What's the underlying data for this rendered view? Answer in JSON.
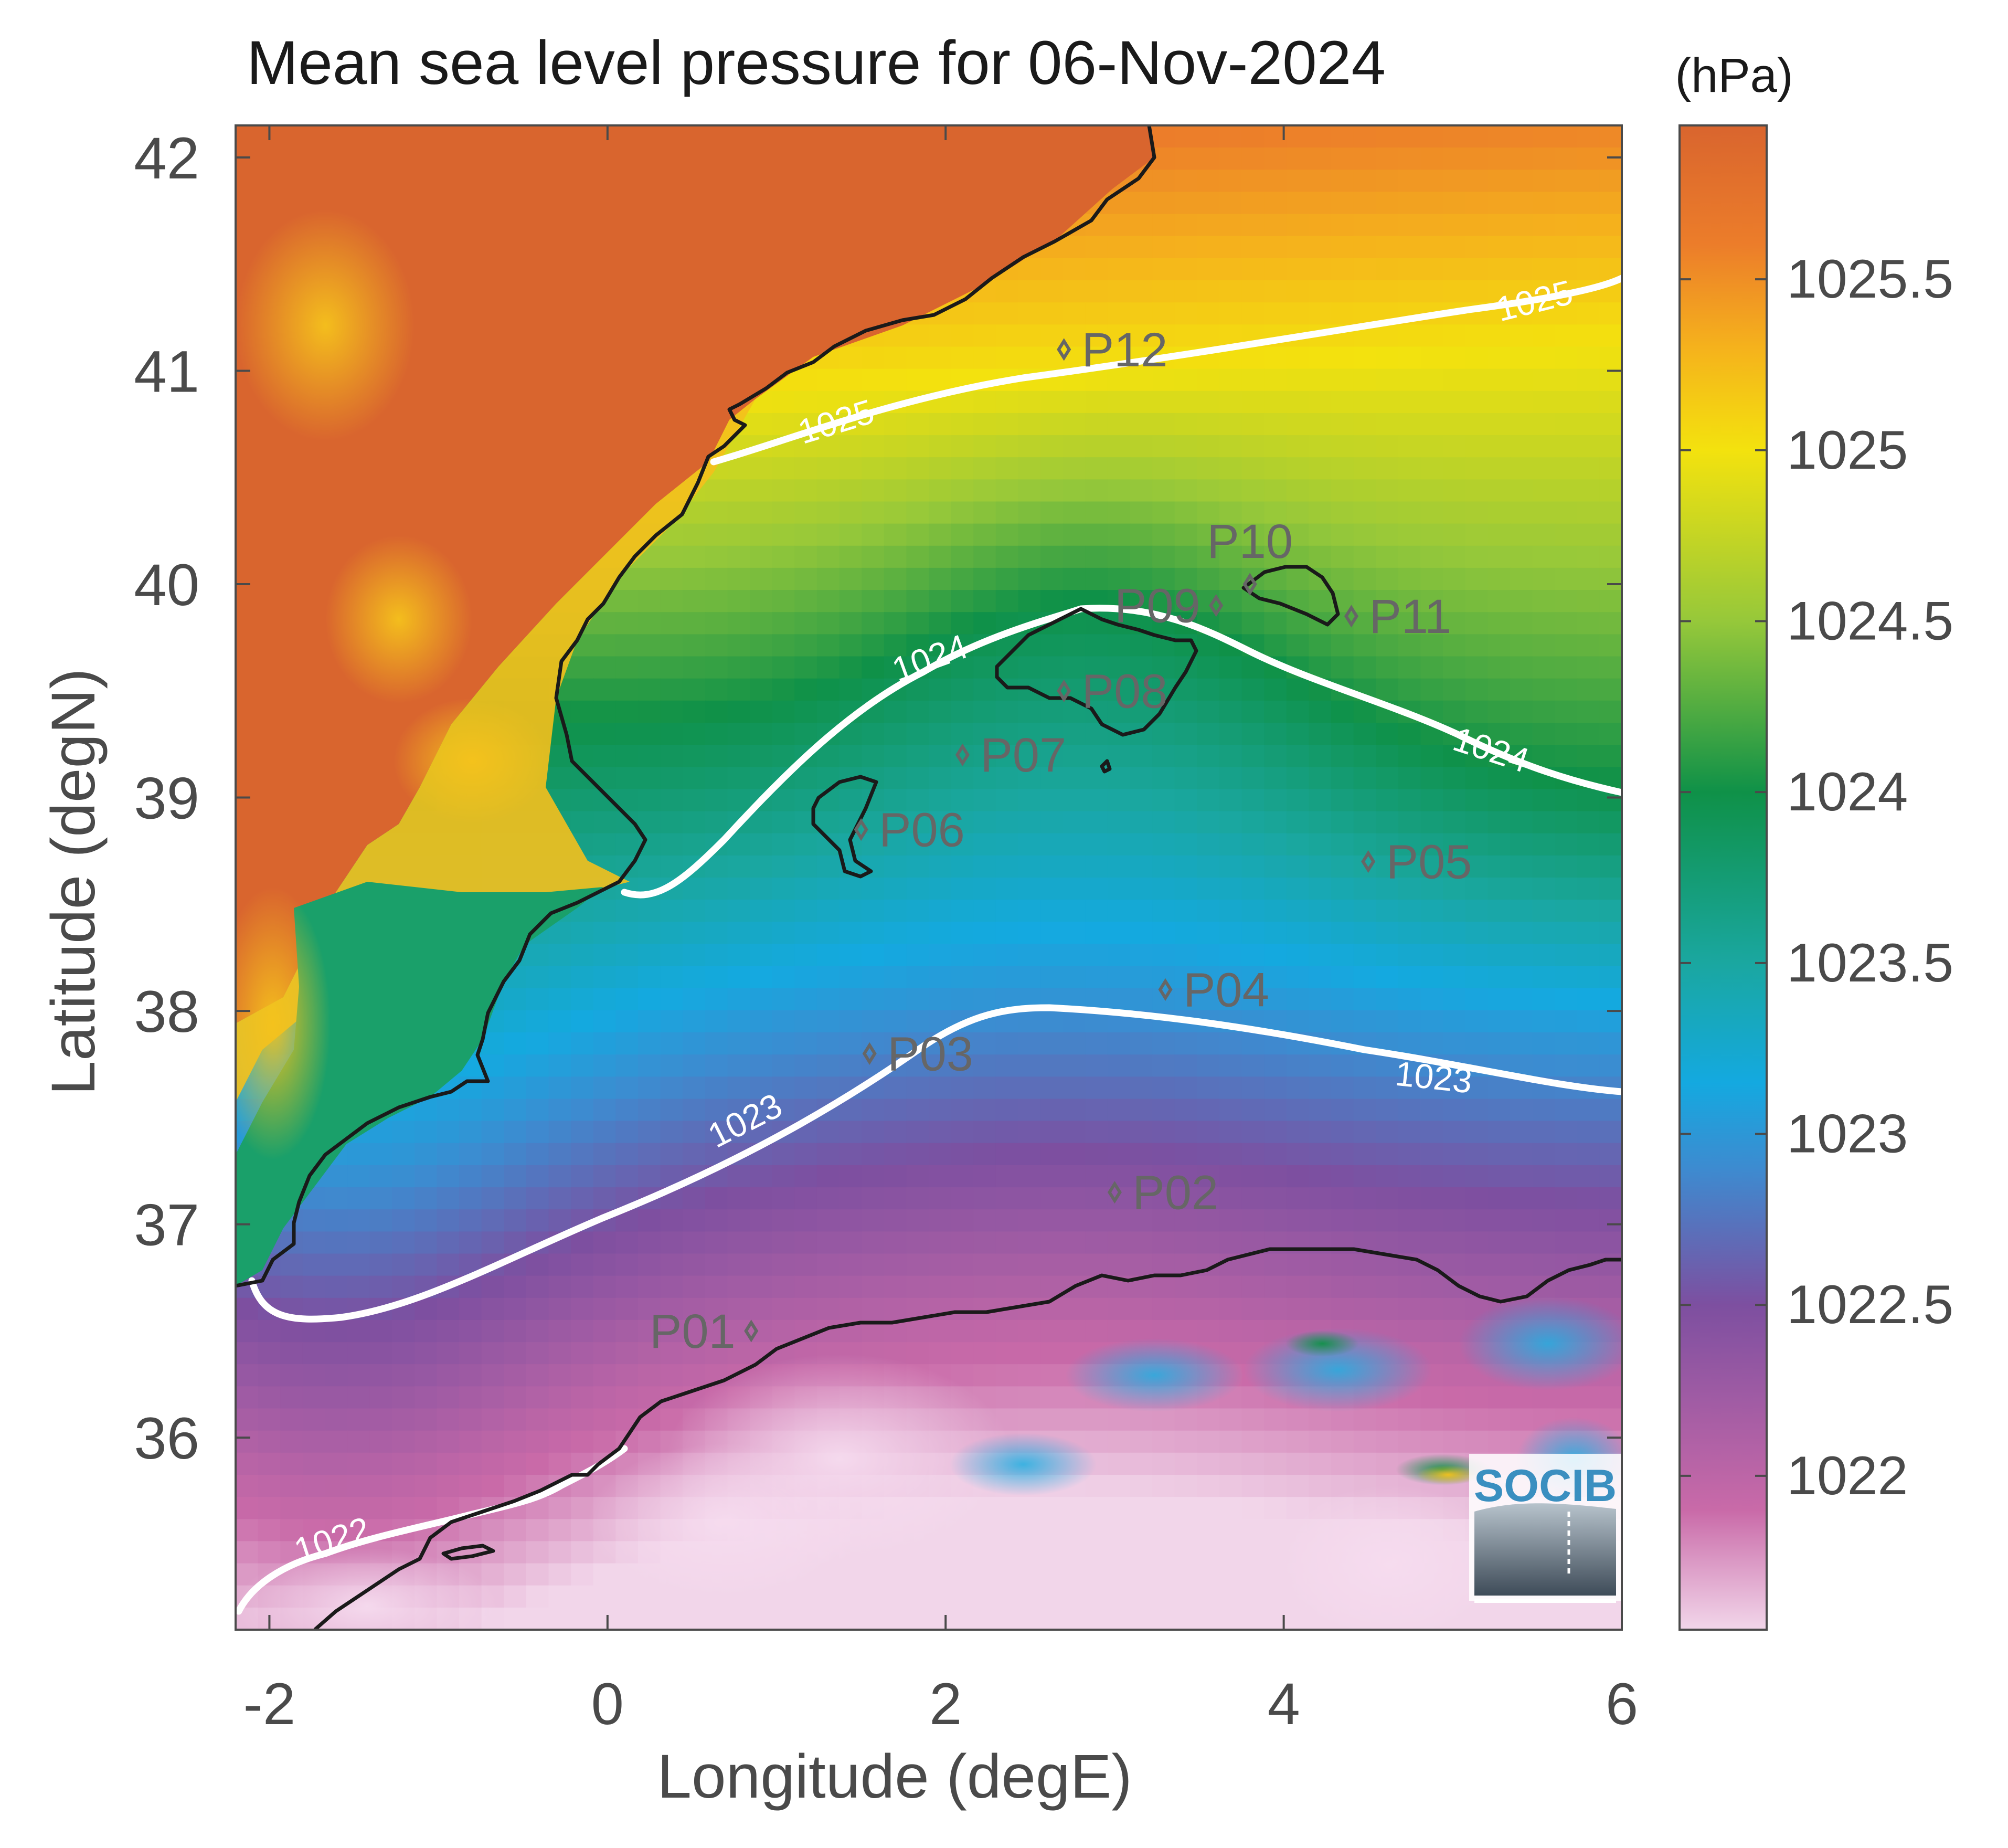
{
  "title": "Mean sea level pressure for 06-Nov-2024",
  "units_label": "(hPa)",
  "axes": {
    "xlabel": "Longitude (degE)",
    "ylabel": "Latitude (degN)",
    "xlim": [
      -2.2,
      6
    ],
    "ylim": [
      35.1,
      42.15
    ],
    "xticks": [
      -2,
      0,
      2,
      4,
      6
    ],
    "yticks": [
      36,
      37,
      38,
      39,
      40,
      41,
      42
    ],
    "xtick_labels": [
      "-2",
      "0",
      "2",
      "4",
      "6"
    ],
    "ytick_labels": [
      "36",
      "37",
      "38",
      "39",
      "40",
      "41",
      "42"
    ]
  },
  "colorbar": {
    "range": [
      1021.55,
      1025.95
    ],
    "ticks": [
      1022,
      1022.5,
      1023,
      1023.5,
      1024,
      1024.5,
      1025,
      1025.5
    ],
    "tick_labels": [
      "1022",
      "1022.5",
      "1023",
      "1023.5",
      "1024",
      "1024.5",
      "1025",
      "1025.5"
    ],
    "stops": [
      {
        "v": 1021.55,
        "c": "#f2d6ea"
      },
      {
        "v": 1021.9,
        "c": "#c96aa8"
      },
      {
        "v": 1022.5,
        "c": "#7d4fa0"
      },
      {
        "v": 1022.9,
        "c": "#3d8bd0"
      },
      {
        "v": 1023.15,
        "c": "#14a9e0"
      },
      {
        "v": 1023.5,
        "c": "#1aa7a0"
      },
      {
        "v": 1024.0,
        "c": "#0f9148"
      },
      {
        "v": 1024.5,
        "c": "#96c83a"
      },
      {
        "v": 1025.0,
        "c": "#f3e20e"
      },
      {
        "v": 1025.3,
        "c": "#f5b21c"
      },
      {
        "v": 1025.6,
        "c": "#ec7d2a"
      },
      {
        "v": 1025.95,
        "c": "#d9652e"
      }
    ]
  },
  "colors": {
    "axis": "#4a4a4a",
    "contour": "#ffffff",
    "coast": "#1a1a1a",
    "marker": "#666666",
    "logo": "#3a8fc0"
  },
  "contour_labels": [
    "1025",
    "1025",
    "1024",
    "1024",
    "1023",
    "1023",
    "1022"
  ],
  "stations": [
    {
      "name": "P01",
      "lon": 0.85,
      "lat": 36.5,
      "label_side": "left"
    },
    {
      "name": "P02",
      "lon": 3.0,
      "lat": 37.15,
      "label_side": "right"
    },
    {
      "name": "P03",
      "lon": 1.55,
      "lat": 37.8,
      "label_side": "right"
    },
    {
      "name": "P04",
      "lon": 3.3,
      "lat": 38.1,
      "label_side": "right"
    },
    {
      "name": "P05",
      "lon": 4.5,
      "lat": 38.7,
      "label_side": "right"
    },
    {
      "name": "P06",
      "lon": 1.5,
      "lat": 38.85,
      "label_side": "right"
    },
    {
      "name": "P07",
      "lon": 2.1,
      "lat": 39.2,
      "label_side": "right"
    },
    {
      "name": "P08",
      "lon": 2.7,
      "lat": 39.5,
      "label_side": "right"
    },
    {
      "name": "P09",
      "lon": 3.6,
      "lat": 39.9,
      "label_side": "left"
    },
    {
      "name": "P10",
      "lon": 3.8,
      "lat": 40.0,
      "label_side": "above"
    },
    {
      "name": "P11",
      "lon": 4.4,
      "lat": 39.85,
      "label_side": "right"
    },
    {
      "name": "P12",
      "lon": 2.7,
      "lat": 41.1,
      "label_side": "right"
    }
  ],
  "logo_text": "SOCIB"
}
